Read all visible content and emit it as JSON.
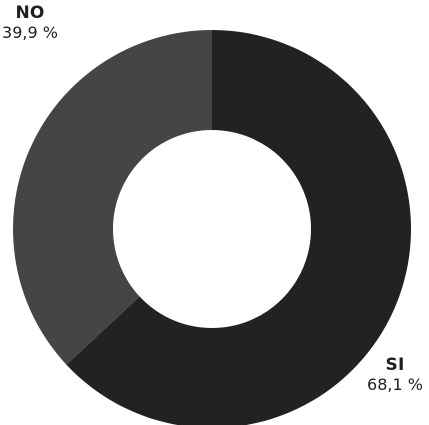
{
  "chart_data": {
    "type": "pie",
    "variant": "donut",
    "title": "",
    "slices": [
      {
        "label": "NO",
        "value_label": "39,9 %",
        "value": 39.9,
        "color": "#454545"
      },
      {
        "label": "SI",
        "value_label": "68,1 %",
        "value": 68.1,
        "color": "#222222"
      }
    ],
    "legend": "none",
    "background": "#ffffff"
  }
}
